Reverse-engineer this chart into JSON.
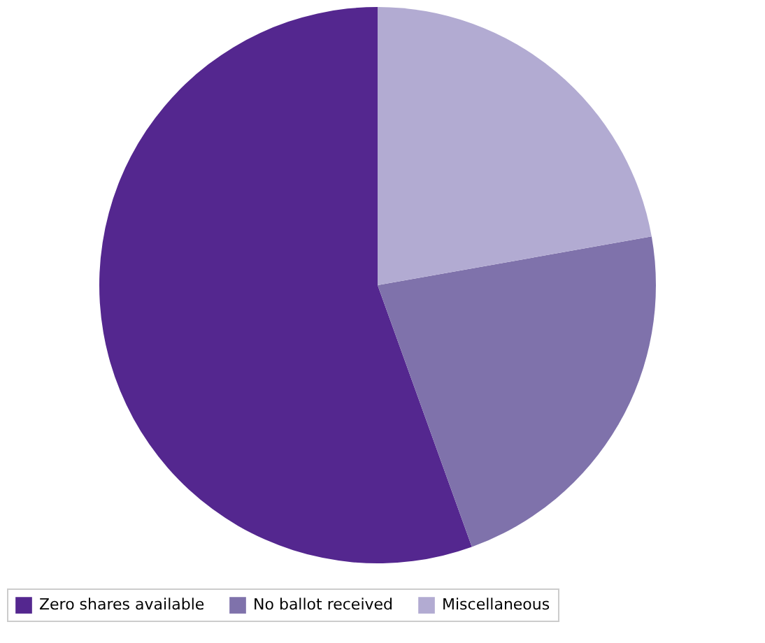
{
  "chart_data": {
    "type": "pie",
    "categories": [
      "Zero shares available",
      "No ballot received",
      "Miscellaneous"
    ],
    "values": [
      55.5,
      22.3,
      22.2
    ],
    "colors": [
      "#54278f",
      "#7f72ab",
      "#b2abd2"
    ],
    "legend": "bottom"
  }
}
